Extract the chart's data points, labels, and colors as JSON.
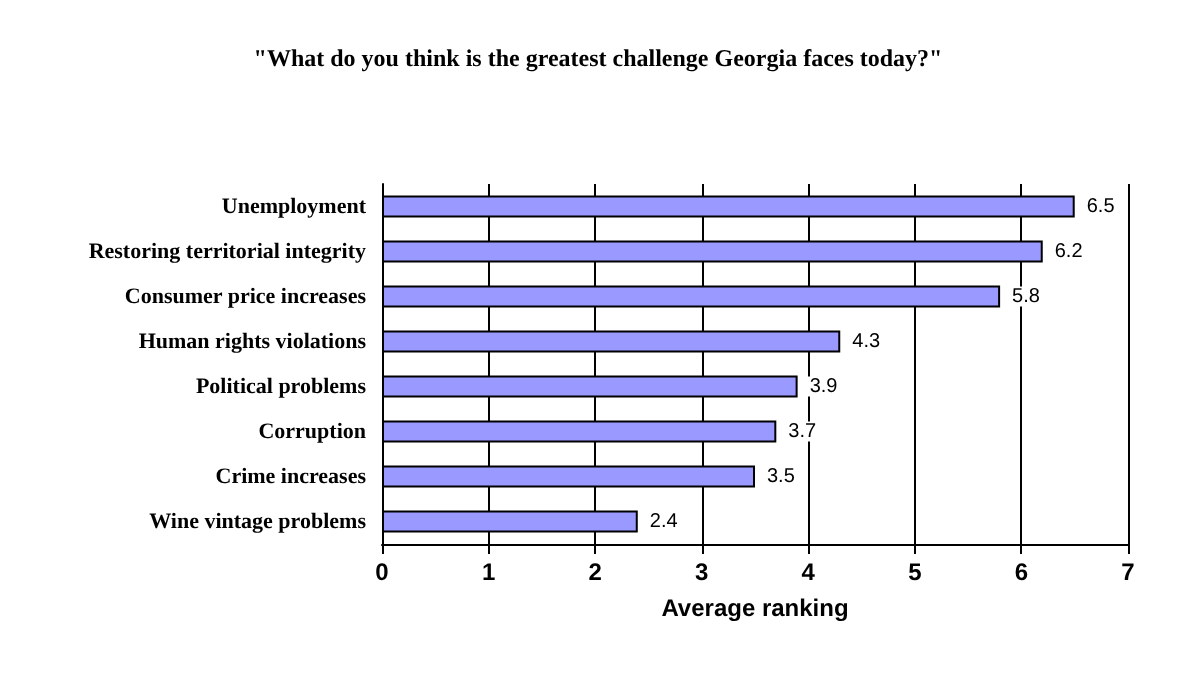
{
  "chart_data": {
    "type": "bar",
    "orientation": "horizontal",
    "title": "\"What do you think is the greatest challenge Georgia faces today?\"",
    "categories": [
      "Unemployment",
      "Restoring territorial integrity",
      "Consumer price increases",
      "Human rights violations",
      "Political problems",
      "Corruption",
      "Crime increases",
      "Wine vintage problems"
    ],
    "values": [
      6.5,
      6.2,
      5.8,
      4.3,
      3.9,
      3.7,
      3.5,
      2.4
    ],
    "color": "#9999ff",
    "xlabel": "Average ranking",
    "xlim": [
      0,
      7
    ],
    "xticks": [
      0,
      1,
      2,
      3,
      4,
      5,
      6,
      7
    ],
    "grid": "x",
    "data_labels": true
  }
}
